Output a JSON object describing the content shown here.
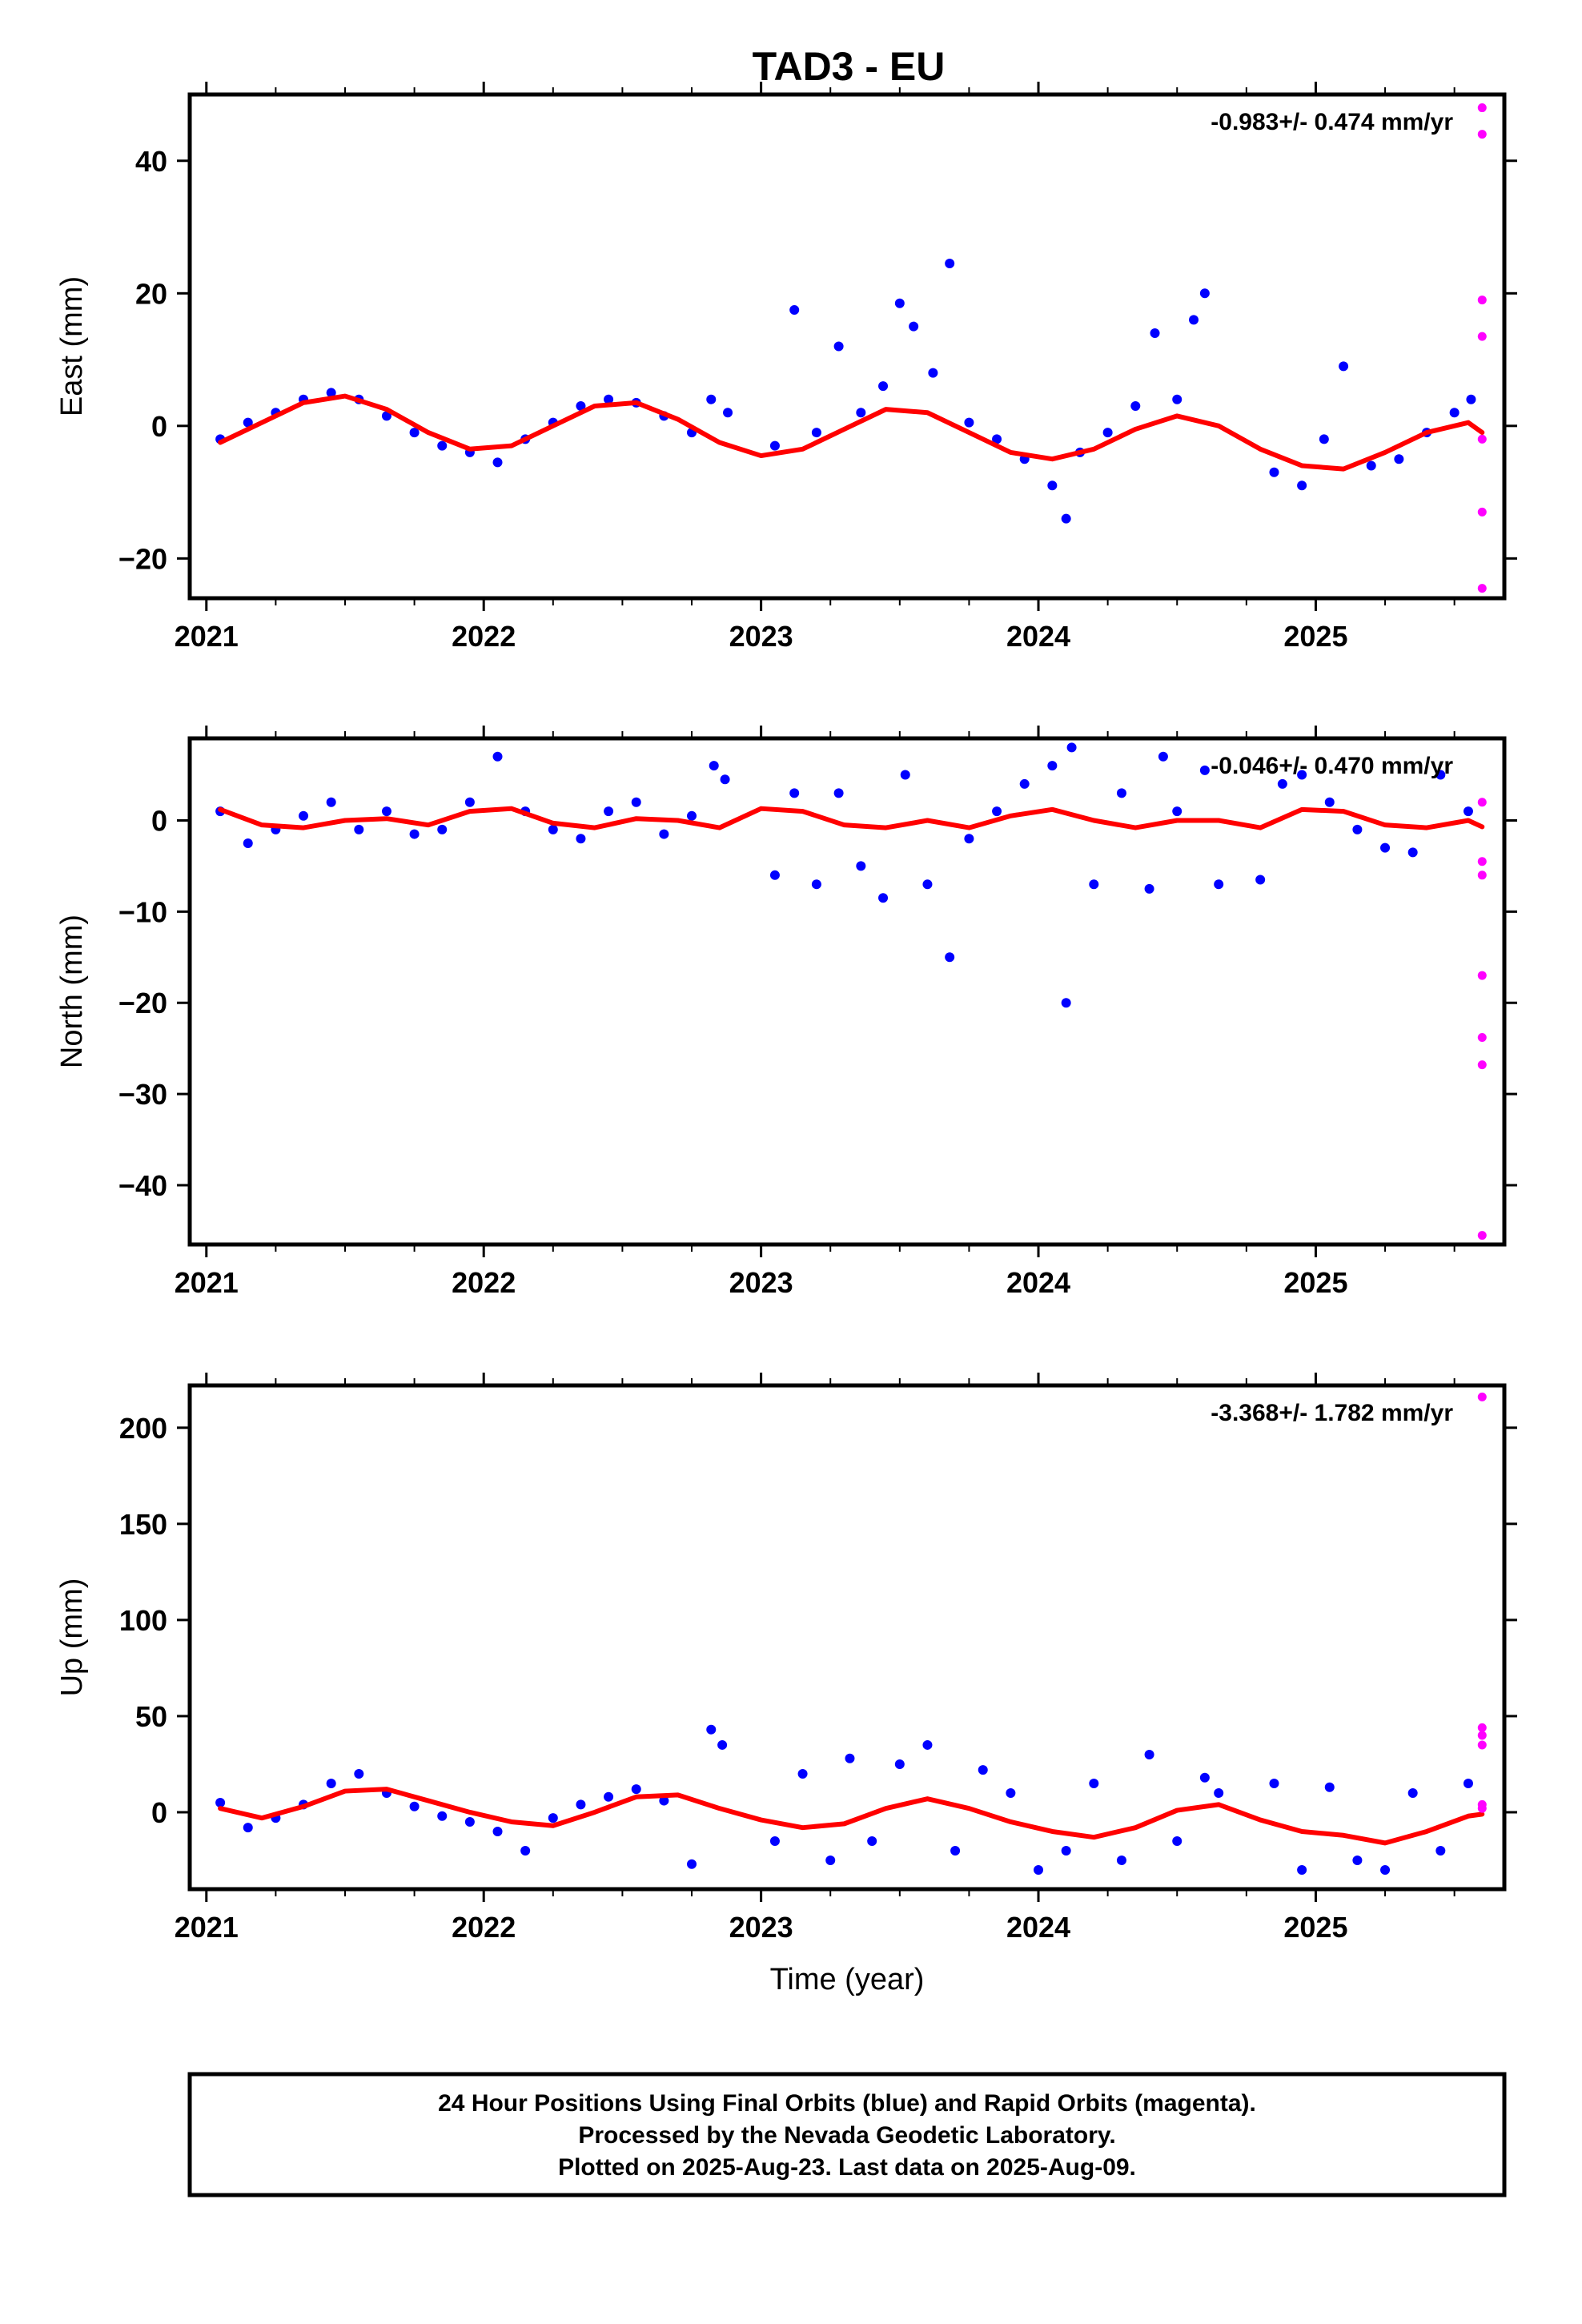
{
  "title": "TAD3 - EU",
  "footer": {
    "line1": "24 Hour Positions Using Final Orbits (blue) and Rapid Orbits (magenta).",
    "line2": "Processed by the Nevada Geodetic Laboratory.",
    "line3": "Plotted on 2025-Aug-23. Last data on 2025-Aug-09."
  },
  "colors": {
    "final_orbits": "#0000ff",
    "rapid_orbits": "#ff00ff",
    "model_fit": "#ff0000",
    "frame": "#000000"
  },
  "chart_data": [
    {
      "type": "scatter",
      "component": "East",
      "ylabel": "East (mm)",
      "xlabel": "",
      "xlim": [
        2020.94,
        2025.68
      ],
      "ylim": [
        -26,
        50
      ],
      "xticks": [
        2021,
        2022,
        2023,
        2024,
        2025
      ],
      "xtick_labels": [
        "2021",
        "2022",
        "2023",
        "2024",
        "2025"
      ],
      "yticks": [
        -20,
        0,
        20,
        40
      ],
      "ytick_labels": [
        "−20",
        "0",
        "20",
        "40"
      ],
      "rate_text": "-0.983+/- 0.474 mm/yr",
      "model": {
        "name": "",
        "x": [
          2021.05,
          2021.2,
          2021.35,
          2021.5,
          2021.65,
          2021.8,
          2021.95,
          2022.1,
          2022.25,
          2022.4,
          2022.55,
          2022.7,
          2022.85,
          2023.0,
          2023.15,
          2023.3,
          2023.45,
          2023.6,
          2023.75,
          2023.9,
          2024.05,
          2024.2,
          2024.35,
          2024.5,
          2024.65,
          2024.8,
          2024.95,
          2025.1,
          2025.25,
          2025.4,
          2025.55,
          2025.6
        ],
        "y": [
          -2.5,
          0.5,
          3.5,
          4.5,
          2.5,
          -1.0,
          -3.5,
          -3.0,
          0.0,
          3.0,
          3.5,
          1.0,
          -2.5,
          -4.5,
          -3.5,
          -0.5,
          2.5,
          2.0,
          -1.0,
          -4.0,
          -5.0,
          -3.5,
          -0.5,
          1.5,
          0.0,
          -3.5,
          -6.0,
          -6.5,
          -4.0,
          -1.0,
          0.5,
          -1.0
        ]
      },
      "final_orbits": {
        "name": "Final Orbits",
        "x": [
          2021.05,
          2021.15,
          2021.25,
          2021.35,
          2021.45,
          2021.55,
          2021.65,
          2021.75,
          2021.85,
          2021.95,
          2022.05,
          2022.15,
          2022.25,
          2022.35,
          2022.45,
          2022.55,
          2022.65,
          2022.75,
          2022.82,
          2022.88,
          2023.05,
          2023.12,
          2023.2,
          2023.28,
          2023.36,
          2023.44,
          2023.5,
          2023.55,
          2023.62,
          2023.68,
          2023.75,
          2023.85,
          2023.95,
          2024.05,
          2024.1,
          2024.15,
          2024.25,
          2024.35,
          2024.42,
          2024.5,
          2024.56,
          2024.6,
          2024.85,
          2024.95,
          2025.03,
          2025.1,
          2025.2,
          2025.3,
          2025.4,
          2025.5,
          2025.56
        ],
        "y": [
          -2.0,
          0.5,
          2.0,
          4.0,
          5.0,
          4.0,
          1.5,
          -1.0,
          -3.0,
          -4.0,
          -5.5,
          -2.0,
          0.5,
          3.0,
          4.0,
          3.5,
          1.5,
          -1.0,
          4.0,
          2.0,
          -3.0,
          17.5,
          -1.0,
          12.0,
          2.0,
          6.0,
          18.5,
          15.0,
          8.0,
          24.5,
          0.5,
          -2.0,
          -5.0,
          -9.0,
          -14.0,
          -4.0,
          -1.0,
          3.0,
          14.0,
          4.0,
          16.0,
          20.0,
          -7.0,
          -9.0,
          -2.0,
          9.0,
          -6.0,
          -5.0,
          -1.0,
          2.0,
          4.0
        ]
      },
      "rapid_orbits": {
        "name": "Rapid Orbits",
        "x": [
          2025.6,
          2025.6,
          2025.6,
          2025.6,
          2025.6,
          2025.6,
          2025.6
        ],
        "y": [
          48.0,
          44.0,
          19.0,
          13.5,
          -2.0,
          -13.0,
          -24.5
        ]
      }
    },
    {
      "type": "scatter",
      "component": "North",
      "ylabel": "North (mm)",
      "xlabel": "",
      "xlim": [
        2020.94,
        2025.68
      ],
      "ylim": [
        -46.5,
        9
      ],
      "xticks": [
        2021,
        2022,
        2023,
        2024,
        2025
      ],
      "xtick_labels": [
        "2021",
        "2022",
        "2023",
        "2024",
        "2025"
      ],
      "yticks": [
        -40,
        -30,
        -20,
        -10,
        0
      ],
      "ytick_labels": [
        "−40",
        "−30",
        "−20",
        "−10",
        "0"
      ],
      "rate_text": "-0.046+/- 0.470 mm/yr",
      "model": {
        "name": "",
        "x": [
          2021.05,
          2021.2,
          2021.35,
          2021.5,
          2021.65,
          2021.8,
          2021.95,
          2022.1,
          2022.25,
          2022.4,
          2022.55,
          2022.7,
          2022.85,
          2023.0,
          2023.15,
          2023.3,
          2023.45,
          2023.6,
          2023.75,
          2023.9,
          2024.05,
          2024.2,
          2024.35,
          2024.5,
          2024.65,
          2024.8,
          2024.95,
          2025.1,
          2025.25,
          2025.4,
          2025.55,
          2025.6
        ],
        "y": [
          1.2,
          -0.5,
          -0.8,
          0.0,
          0.2,
          -0.5,
          1.0,
          1.3,
          -0.3,
          -0.8,
          0.2,
          0.0,
          -0.8,
          1.3,
          1.0,
          -0.5,
          -0.8,
          0.0,
          -0.8,
          0.5,
          1.2,
          0.0,
          -0.8,
          0.0,
          0.0,
          -0.8,
          1.2,
          1.0,
          -0.5,
          -0.8,
          0.0,
          -0.7
        ]
      },
      "final_orbits": {
        "name": "Final Orbits",
        "x": [
          2021.05,
          2021.15,
          2021.25,
          2021.35,
          2021.45,
          2021.55,
          2021.65,
          2021.75,
          2021.85,
          2021.95,
          2022.05,
          2022.15,
          2022.25,
          2022.35,
          2022.45,
          2022.55,
          2022.65,
          2022.75,
          2022.83,
          2022.87,
          2023.05,
          2023.12,
          2023.2,
          2023.28,
          2023.36,
          2023.44,
          2023.52,
          2023.6,
          2023.68,
          2023.75,
          2023.85,
          2023.95,
          2024.05,
          2024.1,
          2024.12,
          2024.2,
          2024.3,
          2024.4,
          2024.45,
          2024.5,
          2024.6,
          2024.65,
          2024.8,
          2024.88,
          2024.95,
          2025.05,
          2025.15,
          2025.25,
          2025.35,
          2025.45,
          2025.55
        ],
        "y": [
          1.0,
          -2.5,
          -1.0,
          0.5,
          2.0,
          -1.0,
          1.0,
          -1.5,
          -1.0,
          2.0,
          7.0,
          1.0,
          -1.0,
          -2.0,
          1.0,
          2.0,
          -1.5,
          0.5,
          6.0,
          4.5,
          -6.0,
          3.0,
          -7.0,
          3.0,
          -5.0,
          -8.5,
          5.0,
          -7.0,
          -15.0,
          -2.0,
          1.0,
          4.0,
          6.0,
          -20.0,
          8.0,
          -7.0,
          3.0,
          -7.5,
          7.0,
          1.0,
          5.5,
          -7.0,
          -6.5,
          4.0,
          5.0,
          2.0,
          -1.0,
          -3.0,
          -3.5,
          5.0,
          1.0
        ]
      },
      "rapid_orbits": {
        "name": "Rapid Orbits",
        "x": [
          2025.6,
          2025.6,
          2025.6,
          2025.6,
          2025.6,
          2025.6,
          2025.6
        ],
        "y": [
          2.0,
          -4.5,
          -6.0,
          -17.0,
          -23.8,
          -26.8,
          -45.5
        ]
      }
    },
    {
      "type": "scatter",
      "component": "Up",
      "ylabel": "Up (mm)",
      "xlabel": "Time (year)",
      "xlim": [
        2020.94,
        2025.68
      ],
      "ylim": [
        -40,
        222
      ],
      "xticks": [
        2021,
        2022,
        2023,
        2024,
        2025
      ],
      "xtick_labels": [
        "2021",
        "2022",
        "2023",
        "2024",
        "2025"
      ],
      "yticks": [
        0,
        50,
        100,
        150,
        200
      ],
      "ytick_labels": [
        "0",
        "50",
        "100",
        "150",
        "200"
      ],
      "rate_text": "-3.368+/- 1.782 mm/yr",
      "model": {
        "name": "",
        "x": [
          2021.05,
          2021.2,
          2021.35,
          2021.5,
          2021.65,
          2021.8,
          2021.95,
          2022.1,
          2022.25,
          2022.4,
          2022.55,
          2022.7,
          2022.85,
          2023.0,
          2023.15,
          2023.3,
          2023.45,
          2023.6,
          2023.75,
          2023.9,
          2024.05,
          2024.2,
          2024.35,
          2024.5,
          2024.65,
          2024.8,
          2024.95,
          2025.1,
          2025.25,
          2025.4,
          2025.55,
          2025.6
        ],
        "y": [
          2.0,
          -3.0,
          3.0,
          11.0,
          12.0,
          6.0,
          0.0,
          -5.0,
          -7.0,
          0.0,
          8.0,
          9.0,
          2.0,
          -4.0,
          -8.0,
          -6.0,
          2.0,
          7.0,
          2.0,
          -5.0,
          -10.0,
          -13.0,
          -8.0,
          1.0,
          4.0,
          -4.0,
          -10.0,
          -12.0,
          -16.0,
          -10.0,
          -2.0,
          -1.0
        ]
      },
      "final_orbits": {
        "name": "Final Orbits",
        "x": [
          2021.05,
          2021.15,
          2021.25,
          2021.35,
          2021.45,
          2021.55,
          2021.65,
          2021.75,
          2021.85,
          2021.95,
          2022.05,
          2022.15,
          2022.25,
          2022.35,
          2022.45,
          2022.55,
          2022.65,
          2022.75,
          2022.82,
          2022.86,
          2023.05,
          2023.15,
          2023.25,
          2023.32,
          2023.4,
          2023.5,
          2023.6,
          2023.7,
          2023.8,
          2023.9,
          2024.0,
          2024.1,
          2024.2,
          2024.3,
          2024.4,
          2024.5,
          2024.6,
          2024.65,
          2024.85,
          2024.95,
          2025.05,
          2025.15,
          2025.25,
          2025.35,
          2025.45,
          2025.55
        ],
        "y": [
          5.0,
          -8.0,
          -3.0,
          4.0,
          15.0,
          20.0,
          10.0,
          3.0,
          -2.0,
          -5.0,
          -10.0,
          -20.0,
          -3.0,
          4.0,
          8.0,
          12.0,
          6.0,
          -27.0,
          43.0,
          35.0,
          -15.0,
          20.0,
          -25.0,
          28.0,
          -15.0,
          25.0,
          35.0,
          -20.0,
          22.0,
          10.0,
          -30.0,
          -20.0,
          15.0,
          -25.0,
          30.0,
          -15.0,
          18.0,
          10.0,
          15.0,
          -30.0,
          13.0,
          -25.0,
          -30.0,
          10.0,
          -20.0,
          15.0
        ]
      },
      "rapid_orbits": {
        "name": "Rapid Orbits",
        "x": [
          2025.6,
          2025.6,
          2025.6,
          2025.6,
          2025.6,
          2025.6
        ],
        "y": [
          216.0,
          44.0,
          40.0,
          35.0,
          4.0,
          2.0
        ]
      }
    }
  ]
}
